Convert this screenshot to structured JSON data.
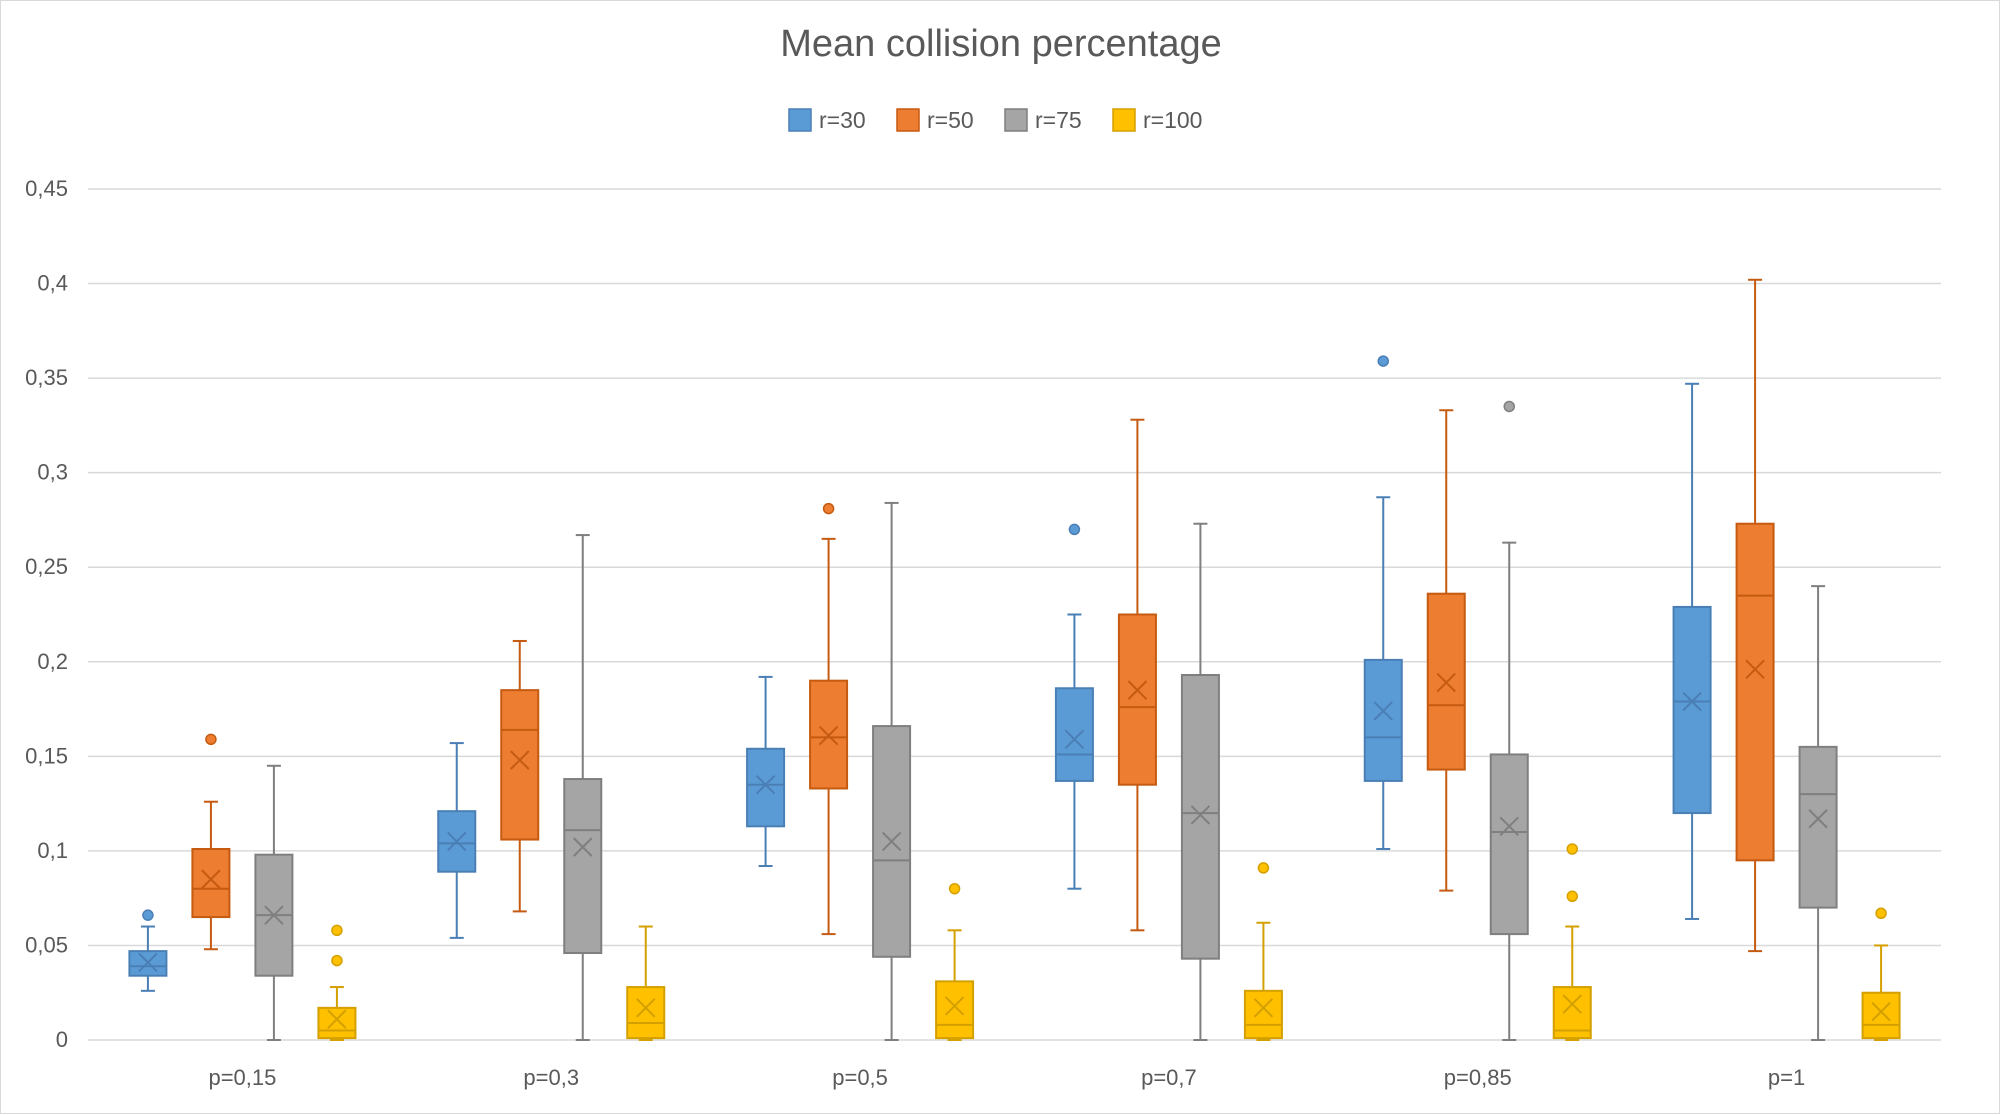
{
  "chart_data": {
    "type": "box",
    "title": "Mean collision percentage",
    "xlabel": "",
    "ylabel": "",
    "ylim": [
      0,
      0.45
    ],
    "yticks": [
      0,
      0.05,
      0.1,
      0.15,
      0.2,
      0.25,
      0.3,
      0.35,
      0.4,
      0.45
    ],
    "ytick_labels": [
      "0",
      "0,05",
      "0,1",
      "0,15",
      "0,2",
      "0,25",
      "0,3",
      "0,35",
      "0,4",
      "0,45"
    ],
    "grid": true,
    "legend_position": "top-center",
    "categories": [
      "p=0,15",
      "p=0,3",
      "p=0,5",
      "p=0,7",
      "p=0,85",
      "p=1"
    ],
    "series": [
      {
        "name": "r=30",
        "color": "#5b9bd5",
        "stroke": "#4a7fb5",
        "boxes": [
          {
            "min": 0.026,
            "q1": 0.034,
            "median": 0.039,
            "q3": 0.047,
            "max": 0.06,
            "mean": 0.041,
            "outliers": [
              0.066
            ]
          },
          {
            "min": 0.054,
            "q1": 0.089,
            "median": 0.104,
            "q3": 0.121,
            "max": 0.157,
            "mean": 0.105,
            "outliers": []
          },
          {
            "min": 0.092,
            "q1": 0.113,
            "median": 0.135,
            "q3": 0.154,
            "max": 0.192,
            "mean": 0.135,
            "outliers": []
          },
          {
            "min": 0.08,
            "q1": 0.137,
            "median": 0.151,
            "q3": 0.186,
            "max": 0.225,
            "mean": 0.159,
            "outliers": [
              0.27
            ]
          },
          {
            "min": 0.101,
            "q1": 0.137,
            "median": 0.16,
            "q3": 0.201,
            "max": 0.287,
            "mean": 0.174,
            "outliers": [
              0.359
            ]
          },
          {
            "min": 0.064,
            "q1": 0.12,
            "median": 0.179,
            "q3": 0.229,
            "max": 0.347,
            "mean": 0.179,
            "outliers": []
          }
        ]
      },
      {
        "name": "r=50",
        "color": "#ed7d31",
        "stroke": "#c55a11",
        "boxes": [
          {
            "min": 0.048,
            "q1": 0.065,
            "median": 0.08,
            "q3": 0.101,
            "max": 0.126,
            "mean": 0.085,
            "outliers": [
              0.159
            ]
          },
          {
            "min": 0.068,
            "q1": 0.106,
            "median": 0.164,
            "q3": 0.185,
            "max": 0.211,
            "mean": 0.148,
            "outliers": []
          },
          {
            "min": 0.056,
            "q1": 0.133,
            "median": 0.16,
            "q3": 0.19,
            "max": 0.265,
            "mean": 0.161,
            "outliers": [
              0.281
            ]
          },
          {
            "min": 0.058,
            "q1": 0.135,
            "median": 0.176,
            "q3": 0.225,
            "max": 0.328,
            "mean": 0.185,
            "outliers": []
          },
          {
            "min": 0.079,
            "q1": 0.143,
            "median": 0.177,
            "q3": 0.236,
            "max": 0.333,
            "mean": 0.189,
            "outliers": []
          },
          {
            "min": 0.047,
            "q1": 0.095,
            "median": 0.235,
            "q3": 0.273,
            "max": 0.402,
            "mean": 0.196,
            "outliers": []
          }
        ]
      },
      {
        "name": "r=75",
        "color": "#a5a5a5",
        "stroke": "#7f7f7f",
        "boxes": [
          {
            "min": 0.0,
            "q1": 0.034,
            "median": 0.066,
            "q3": 0.098,
            "max": 0.145,
            "mean": 0.066,
            "outliers": []
          },
          {
            "min": 0.0,
            "q1": 0.046,
            "median": 0.111,
            "q3": 0.138,
            "max": 0.267,
            "mean": 0.102,
            "outliers": []
          },
          {
            "min": 0.0,
            "q1": 0.044,
            "median": 0.095,
            "q3": 0.166,
            "max": 0.284,
            "mean": 0.105,
            "outliers": []
          },
          {
            "min": 0.0,
            "q1": 0.043,
            "median": 0.12,
            "q3": 0.193,
            "max": 0.273,
            "mean": 0.119,
            "outliers": []
          },
          {
            "min": 0.0,
            "q1": 0.056,
            "median": 0.11,
            "q3": 0.151,
            "max": 0.263,
            "mean": 0.113,
            "outliers": [
              0.335
            ]
          },
          {
            "min": 0.0,
            "q1": 0.07,
            "median": 0.13,
            "q3": 0.155,
            "max": 0.24,
            "mean": 0.117,
            "outliers": []
          }
        ]
      },
      {
        "name": "r=100",
        "color": "#ffc000",
        "stroke": "#d4a000",
        "boxes": [
          {
            "min": 0.0,
            "q1": 0.001,
            "median": 0.005,
            "q3": 0.017,
            "max": 0.028,
            "mean": 0.011,
            "outliers": [
              0.042,
              0.058
            ]
          },
          {
            "min": 0.0,
            "q1": 0.001,
            "median": 0.009,
            "q3": 0.028,
            "max": 0.06,
            "mean": 0.017,
            "outliers": []
          },
          {
            "min": 0.0,
            "q1": 0.001,
            "median": 0.008,
            "q3": 0.031,
            "max": 0.058,
            "mean": 0.018,
            "outliers": [
              0.08
            ]
          },
          {
            "min": 0.0,
            "q1": 0.001,
            "median": 0.008,
            "q3": 0.026,
            "max": 0.062,
            "mean": 0.017,
            "outliers": [
              0.091
            ]
          },
          {
            "min": 0.0,
            "q1": 0.001,
            "median": 0.005,
            "q3": 0.028,
            "max": 0.06,
            "mean": 0.019,
            "outliers": [
              0.076,
              0.101
            ]
          },
          {
            "min": 0.0,
            "q1": 0.001,
            "median": 0.008,
            "q3": 0.025,
            "max": 0.05,
            "mean": 0.015,
            "outliers": [
              0.067
            ]
          }
        ]
      }
    ]
  }
}
